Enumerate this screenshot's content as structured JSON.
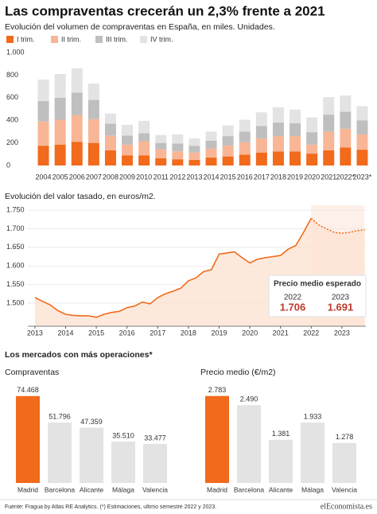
{
  "title": "Las compraventas crecerán un 2,3% frente a 2021",
  "section_title": "Los mercados con más operaciones*",
  "footer": {
    "source": "Fuente: Fragua by Atlas RE Analytics. (*) Estimaciones, ultimo semestre 2022 y 2023.",
    "logo": "elEconomista.es"
  },
  "chart_data": [
    {
      "type": "stacked_bar",
      "title": "Evolución del volumen de compraventas en España, en miles. Unidades.",
      "categories": [
        "2004",
        "2005",
        "2006",
        "2007",
        "2008",
        "2009",
        "2010",
        "2011",
        "2012",
        "2013",
        "2014",
        "2015",
        "2016",
        "2017",
        "2018",
        "2019",
        "2020",
        "2021",
        "2022*",
        "2023*"
      ],
      "series": [
        {
          "name": "I trim.",
          "color": "#f26a1b",
          "values": [
            175,
            185,
            210,
            200,
            135,
            90,
            90,
            65,
            55,
            50,
            70,
            80,
            95,
            115,
            125,
            125,
            105,
            135,
            160,
            140
          ]
        },
        {
          "name": "II trim.",
          "color": "#f8b696",
          "values": [
            215,
            220,
            235,
            210,
            130,
            95,
            125,
            80,
            70,
            65,
            80,
            95,
            110,
            125,
            135,
            135,
            80,
            165,
            165,
            135
          ]
        },
        {
          "name": "III trim.",
          "color": "#bfbfbf",
          "values": [
            180,
            195,
            200,
            170,
            105,
            80,
            70,
            55,
            70,
            60,
            70,
            85,
            95,
            110,
            120,
            115,
            110,
            150,
            150,
            125
          ]
        },
        {
          "name": "IV trim.",
          "color": "#e3e3e3",
          "values": [
            190,
            210,
            215,
            145,
            90,
            95,
            110,
            70,
            80,
            65,
            80,
            95,
            105,
            120,
            135,
            120,
            130,
            155,
            145,
            125
          ]
        }
      ],
      "ylim": [
        0,
        1000
      ],
      "yticks": [
        0,
        200,
        400,
        600,
        800,
        {
          "value": 1000,
          "label": "1.000"
        }
      ]
    },
    {
      "type": "line",
      "title": "Evolución del valor tasado, en euros/m2.",
      "x": [
        2013,
        2013.25,
        2013.5,
        2013.75,
        2014,
        2014.25,
        2014.5,
        2014.75,
        2015,
        2015.25,
        2015.5,
        2015.75,
        2016,
        2016.25,
        2016.5,
        2016.75,
        2017,
        2017.25,
        2017.5,
        2017.75,
        2018,
        2018.25,
        2018.5,
        2018.75,
        2019,
        2019.25,
        2019.5,
        2019.75,
        2020,
        2020.25,
        2020.5,
        2020.75,
        2021,
        2021.25,
        2021.5,
        2021.75,
        2022,
        2022.25,
        2022.5,
        2022.75,
        2023,
        2023.25,
        2023.5,
        2023.75
      ],
      "series": [
        {
          "color": "#f26a1b",
          "fill": "#fde3d3",
          "values": [
            1515,
            1505,
            1495,
            1480,
            1470,
            1467,
            1466,
            1466,
            1462,
            1470,
            1475,
            1478,
            1488,
            1492,
            1503,
            1498,
            1515,
            1525,
            1532,
            1540,
            1560,
            1568,
            1585,
            1590,
            1632,
            1635,
            1638,
            1622,
            1608,
            1618,
            1622,
            1625,
            1628,
            1645,
            1655,
            1690,
            1728,
            null,
            null,
            null,
            null,
            null,
            null,
            null
          ]
        },
        {
          "color": "#f26a1b",
          "fill": "#fde3d3",
          "dashed": true,
          "values": [
            null,
            null,
            null,
            null,
            null,
            null,
            null,
            null,
            null,
            null,
            null,
            null,
            null,
            null,
            null,
            null,
            null,
            null,
            null,
            null,
            null,
            null,
            null,
            null,
            null,
            null,
            null,
            null,
            null,
            null,
            null,
            null,
            null,
            null,
            null,
            null,
            1728,
            1710,
            1700,
            1690,
            1688,
            1690,
            1695,
            1697
          ]
        }
      ],
      "xlim": [
        2012.77,
        2023.78
      ],
      "xticks": [
        2013,
        2014,
        2015,
        2016,
        2017,
        2018,
        2019,
        2020,
        2021,
        2022,
        2023
      ],
      "ylim": [
        1438,
        1763
      ],
      "yticks": [
        {
          "value": 1500,
          "label": "1.500"
        },
        {
          "value": 1550,
          "label": "1.550"
        },
        {
          "value": 1600,
          "label": "1.600"
        },
        {
          "value": 1650,
          "label": "1.650"
        },
        {
          "value": 1700,
          "label": "1.700"
        },
        {
          "value": 1750,
          "label": "1.750"
        }
      ],
      "grid": true,
      "annotation": {
        "title": "Precio medio esperado",
        "labels": [
          "2022",
          "2023"
        ],
        "values": [
          "1.706",
          "1.691"
        ]
      }
    },
    {
      "type": "bar",
      "title": "Compraventas",
      "categories": [
        "Madrid",
        "Barcelona",
        "Alicante",
        "Málaga",
        "Valencia"
      ],
      "values": [
        74468,
        51796,
        47359,
        35510,
        33477
      ],
      "value_labels": [
        "74.468",
        "51.796",
        "47.359",
        "35.510",
        "33.477"
      ],
      "colors": [
        "#f26a1b",
        "#e3e3e3",
        "#e3e3e3",
        "#e3e3e3",
        "#e3e3e3"
      ],
      "ylim": [
        0,
        75000
      ]
    },
    {
      "type": "bar",
      "title": "Precio medio (€/m2)",
      "categories": [
        "Madrid",
        "Barcelona",
        "Alicante",
        "Málaga",
        "Valencia"
      ],
      "values": [
        2783,
        2490,
        1381,
        1933,
        1278
      ],
      "value_labels": [
        "2.783",
        "2.490",
        "1.381",
        "1.933",
        "1.278"
      ],
      "colors": [
        "#f26a1b",
        "#e3e3e3",
        "#e3e3e3",
        "#e3e3e3",
        "#e3e3e3"
      ],
      "ylim": [
        0,
        2800
      ]
    }
  ]
}
